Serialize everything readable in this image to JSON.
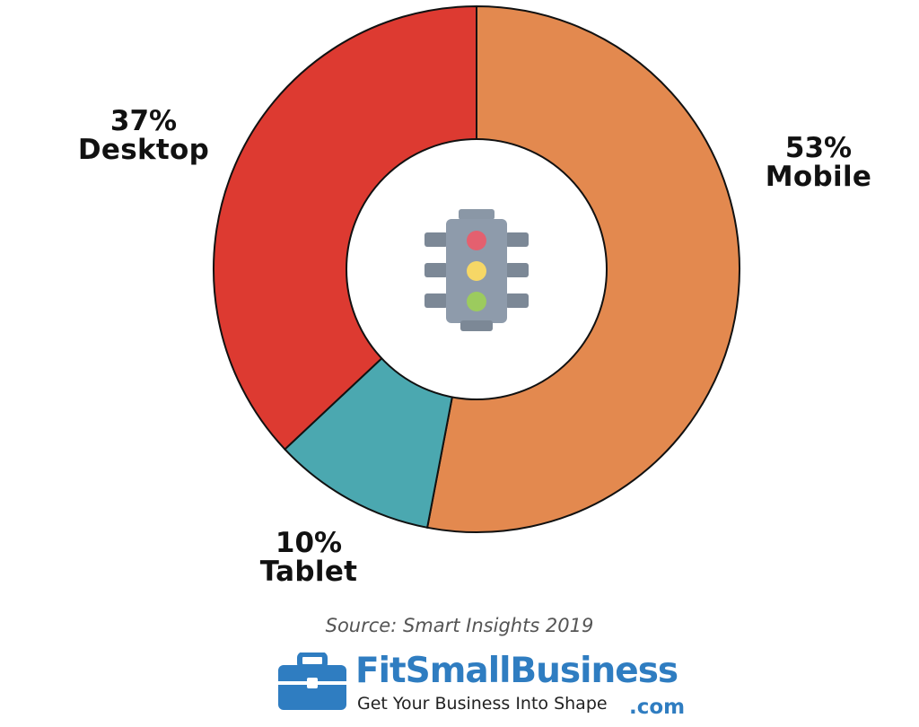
{
  "chart_data": {
    "type": "pie",
    "donut": true,
    "slices": [
      {
        "label": "Mobile",
        "value": 53,
        "value_label": "53%",
        "color": "#e3894f"
      },
      {
        "label": "Tablet",
        "value": 10,
        "value_label": "10%",
        "color": "#4ba8b0"
      },
      {
        "label": "Desktop",
        "value": 37,
        "value_label": "37%",
        "color": "#dd3a31"
      }
    ],
    "center_icon": "traffic-light-icon",
    "start": "top, clockwise"
  },
  "source": "Source: Smart Insights 2019",
  "logo": {
    "wordmark": "FitSmallBusiness",
    "tagline": "Get Your Business Into Shape",
    "suffix": ".com",
    "icon": "briefcase-icon",
    "brand_color": "#2f7dc1"
  }
}
